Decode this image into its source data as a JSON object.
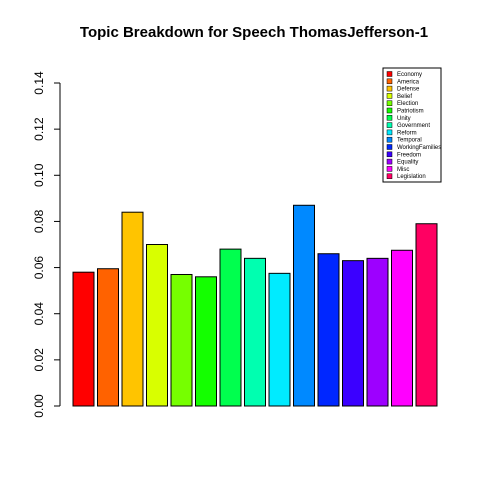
{
  "chart_data": {
    "type": "bar",
    "title": "Topic Breakdown for Speech ThomasJefferson-1",
    "xlabel": "",
    "ylabel": "",
    "ylim": [
      0,
      0.14
    ],
    "yticks": [
      0.0,
      0.02,
      0.04,
      0.06,
      0.08,
      0.1,
      0.12,
      0.14
    ],
    "ytick_labels": [
      "0.00",
      "0.02",
      "0.04",
      "0.06",
      "0.08",
      "0.10",
      "0.12",
      "0.14"
    ],
    "grid": false,
    "legend_position": "top-right",
    "categories": [
      "Economy",
      "America",
      "Defense",
      "Belief",
      "Election",
      "Patriotism",
      "Unity",
      "Government",
      "Reform",
      "Temporal",
      "WorkingFamilies",
      "Freedom",
      "Equality",
      "Misc",
      "Legislation"
    ],
    "values": [
      0.058,
      0.0595,
      0.084,
      0.07,
      0.057,
      0.056,
      0.068,
      0.064,
      0.0575,
      0.087,
      0.066,
      0.063,
      0.064,
      0.0675,
      0.079
    ],
    "colors": [
      "#FF0000",
      "#FF6200",
      "#FFC400",
      "#D8FF00",
      "#76FF00",
      "#14FF00",
      "#00FF4E",
      "#00FFB0",
      "#00EBFF",
      "#0089FF",
      "#0027FF",
      "#3B00FF",
      "#9D00FF",
      "#FF00FF",
      "#FF0062"
    ]
  }
}
